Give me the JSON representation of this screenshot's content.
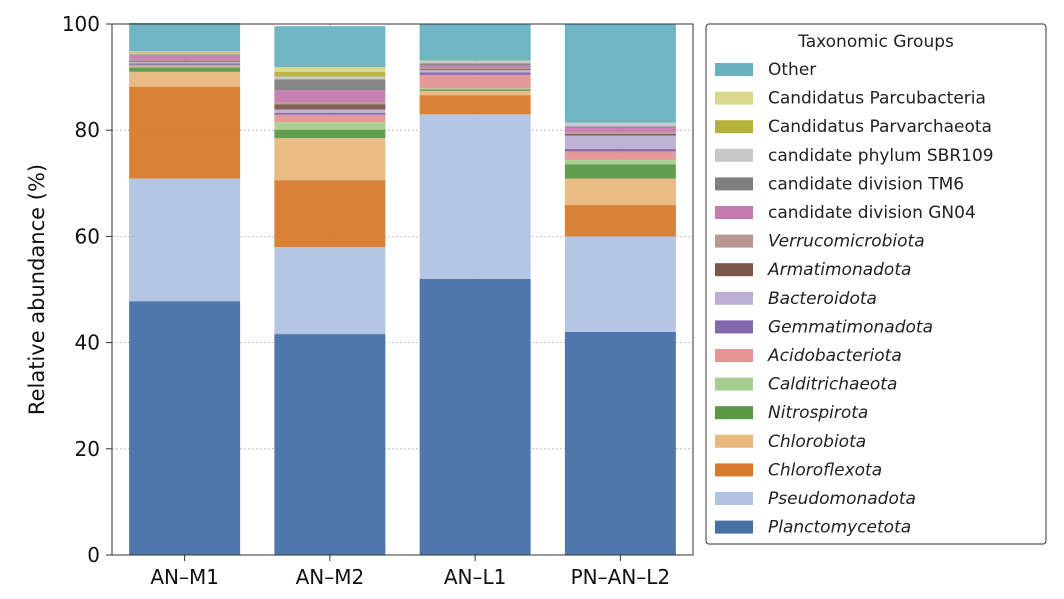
{
  "chart_data": {
    "type": "bar",
    "stacked": true,
    "categories": [
      "AN–M1",
      "AN–M2",
      "AN–L1",
      "PN–AN–L2"
    ],
    "ylabel": "Relative abundance (%)",
    "xlabel": "",
    "ylim": [
      0,
      100
    ],
    "yticks": [
      "0",
      "20",
      "40",
      "60",
      "80",
      "100"
    ],
    "grid": true,
    "legend": {
      "title": "Taxonomic Groups",
      "placement": "right, outside plot"
    },
    "series": [
      {
        "name": "Planctomycetota",
        "color": "#4670a6",
        "italic": true,
        "values": [
          47.8,
          41.6,
          52.0,
          42.0
        ]
      },
      {
        "name": "Pseudomonadota",
        "color": "#b0c3e1",
        "italic": true,
        "values": [
          23.1,
          16.4,
          31.0,
          18.0
        ]
      },
      {
        "name": "Chloroflexota",
        "color": "#d77a2c",
        "italic": true,
        "values": [
          17.3,
          12.6,
          3.6,
          5.9
        ]
      },
      {
        "name": "Chlorobiota",
        "color": "#e8b87f",
        "italic": true,
        "values": [
          2.8,
          7.9,
          0.8,
          5.0
        ]
      },
      {
        "name": "Nitrospirota",
        "color": "#5b9846",
        "italic": true,
        "values": [
          0.8,
          1.6,
          0.3,
          2.7
        ]
      },
      {
        "name": "Calditrichaeota",
        "color": "#a6cf8f",
        "italic": true,
        "values": [
          0.2,
          1.4,
          0.2,
          0.8
        ]
      },
      {
        "name": "Acidobacteriota",
        "color": "#e39593",
        "italic": true,
        "values": [
          0.3,
          1.4,
          2.5,
          1.6
        ]
      },
      {
        "name": "Gemmatimonadota",
        "color": "#8268ac",
        "italic": true,
        "values": [
          0.3,
          0.4,
          0.5,
          0.5
        ]
      },
      {
        "name": "Bacteroidota",
        "color": "#bcaed5",
        "italic": true,
        "values": [
          0.3,
          0.6,
          0.4,
          2.5
        ]
      },
      {
        "name": "Armatimonadota",
        "color": "#7d564a",
        "italic": true,
        "values": [
          0.2,
          1.0,
          0.2,
          0.3
        ]
      },
      {
        "name": "Verrucomicrobiota",
        "color": "#b7978f",
        "italic": true,
        "values": [
          0.2,
          0.4,
          0.3,
          0.3
        ]
      },
      {
        "name": "candidate division GN04",
        "color": "#c47aae",
        "italic": false,
        "values": [
          0.8,
          2.2,
          0.4,
          0.9
        ]
      },
      {
        "name": "candidate division TM6",
        "color": "#7f7f7f",
        "italic": false,
        "values": [
          0.2,
          2.1,
          0.4,
          0.2
        ]
      },
      {
        "name": "candidate phylum SBR109",
        "color": "#c7c7c7",
        "italic": false,
        "values": [
          0.3,
          0.5,
          0.3,
          0.5
        ]
      },
      {
        "name": "Candidatus Parvarchaeota",
        "color": "#b5b23a",
        "italic": false,
        "values": [
          0.2,
          0.9,
          0.1,
          0.1
        ]
      },
      {
        "name": "Candidatus Parcubacteria",
        "color": "#d7d78e",
        "italic": false,
        "values": [
          0.1,
          0.9,
          0.1,
          0.1
        ]
      },
      {
        "name": "Other",
        "color": "#67b1c0",
        "italic": false,
        "values": [
          5.3,
          7.7,
          6.9,
          18.6
        ]
      }
    ]
  }
}
